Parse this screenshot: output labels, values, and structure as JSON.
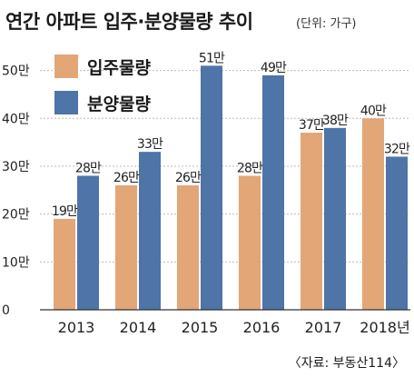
{
  "header": {
    "title": "연간 아파트 입주·분양물량 추이",
    "unit": "(단위: 가구)"
  },
  "source": "〈자료: 부동산114〉",
  "colors": {
    "move_in": "#e2a677",
    "pre_sale": "#4e74a8",
    "axis": "#333333",
    "grid": "#bbbbbb"
  },
  "chart_data": {
    "type": "bar",
    "categories": [
      "2013",
      "2014",
      "2015",
      "2016",
      "2017",
      "2018년"
    ],
    "series": [
      {
        "name": "입주물량",
        "values": [
          19,
          26,
          26,
          28,
          37,
          40
        ],
        "labels": [
          "19만",
          "26만",
          "26만",
          "28만",
          "37만",
          "40만"
        ]
      },
      {
        "name": "분양물량",
        "values": [
          28,
          33,
          51,
          49,
          38,
          32
        ],
        "labels": [
          "28만",
          "33만",
          "51만",
          "49만",
          "38만",
          "32만"
        ]
      }
    ],
    "yticks": [
      0,
      10,
      20,
      30,
      40,
      50
    ],
    "ytick_labels": [
      "0",
      "10만",
      "20만",
      "30만",
      "40만",
      "50만"
    ],
    "ylim": [
      0,
      56
    ],
    "grid": true,
    "legend": "top-left"
  }
}
